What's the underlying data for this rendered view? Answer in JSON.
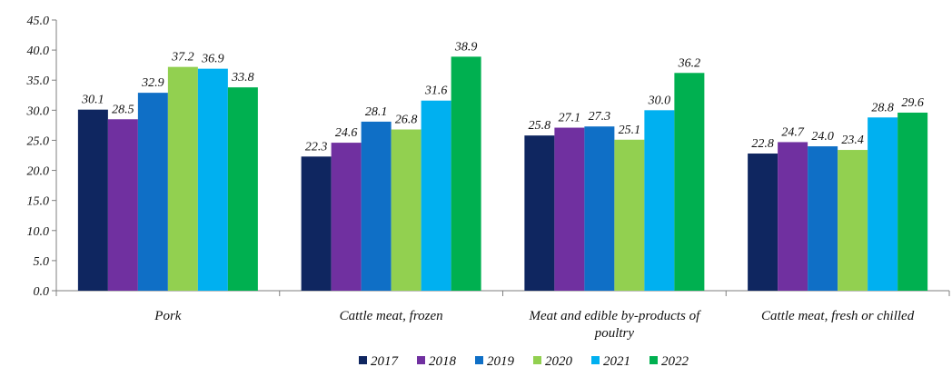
{
  "chart_data": {
    "type": "bar",
    "categories": [
      "Pork",
      "Cattle meat, frozen",
      "Meat and edible by-products of poultry",
      "Cattle meat, fresh or chilled"
    ],
    "category_lines": [
      [
        "Pork"
      ],
      [
        "Cattle meat, frozen"
      ],
      [
        "Meat and edible by-products of",
        "poultry"
      ],
      [
        "Cattle meat, fresh or chilled"
      ]
    ],
    "series": [
      {
        "name": "2017",
        "color": "#0f2660",
        "values": [
          30.1,
          22.3,
          25.8,
          22.8
        ]
      },
      {
        "name": "2018",
        "color": "#7030a0",
        "values": [
          28.5,
          24.6,
          27.1,
          24.7
        ]
      },
      {
        "name": "2019",
        "color": "#0f6fc6",
        "values": [
          32.9,
          28.1,
          27.3,
          24.0
        ]
      },
      {
        "name": "2020",
        "color": "#92d050",
        "values": [
          37.2,
          26.8,
          25.1,
          23.4
        ]
      },
      {
        "name": "2021",
        "color": "#00b0f0",
        "values": [
          36.9,
          31.6,
          30.0,
          28.8
        ]
      },
      {
        "name": "2022",
        "color": "#00b050",
        "values": [
          33.8,
          38.9,
          36.2,
          29.6
        ]
      }
    ],
    "ylim": [
      0,
      45
    ],
    "yticks": [
      "0.0",
      "5.0",
      "10.0",
      "15.0",
      "20.0",
      "25.0",
      "30.0",
      "35.0",
      "40.0",
      "45.0"
    ],
    "grid": false,
    "legend_position": "bottom",
    "title": "",
    "xlabel": "",
    "ylabel": ""
  }
}
